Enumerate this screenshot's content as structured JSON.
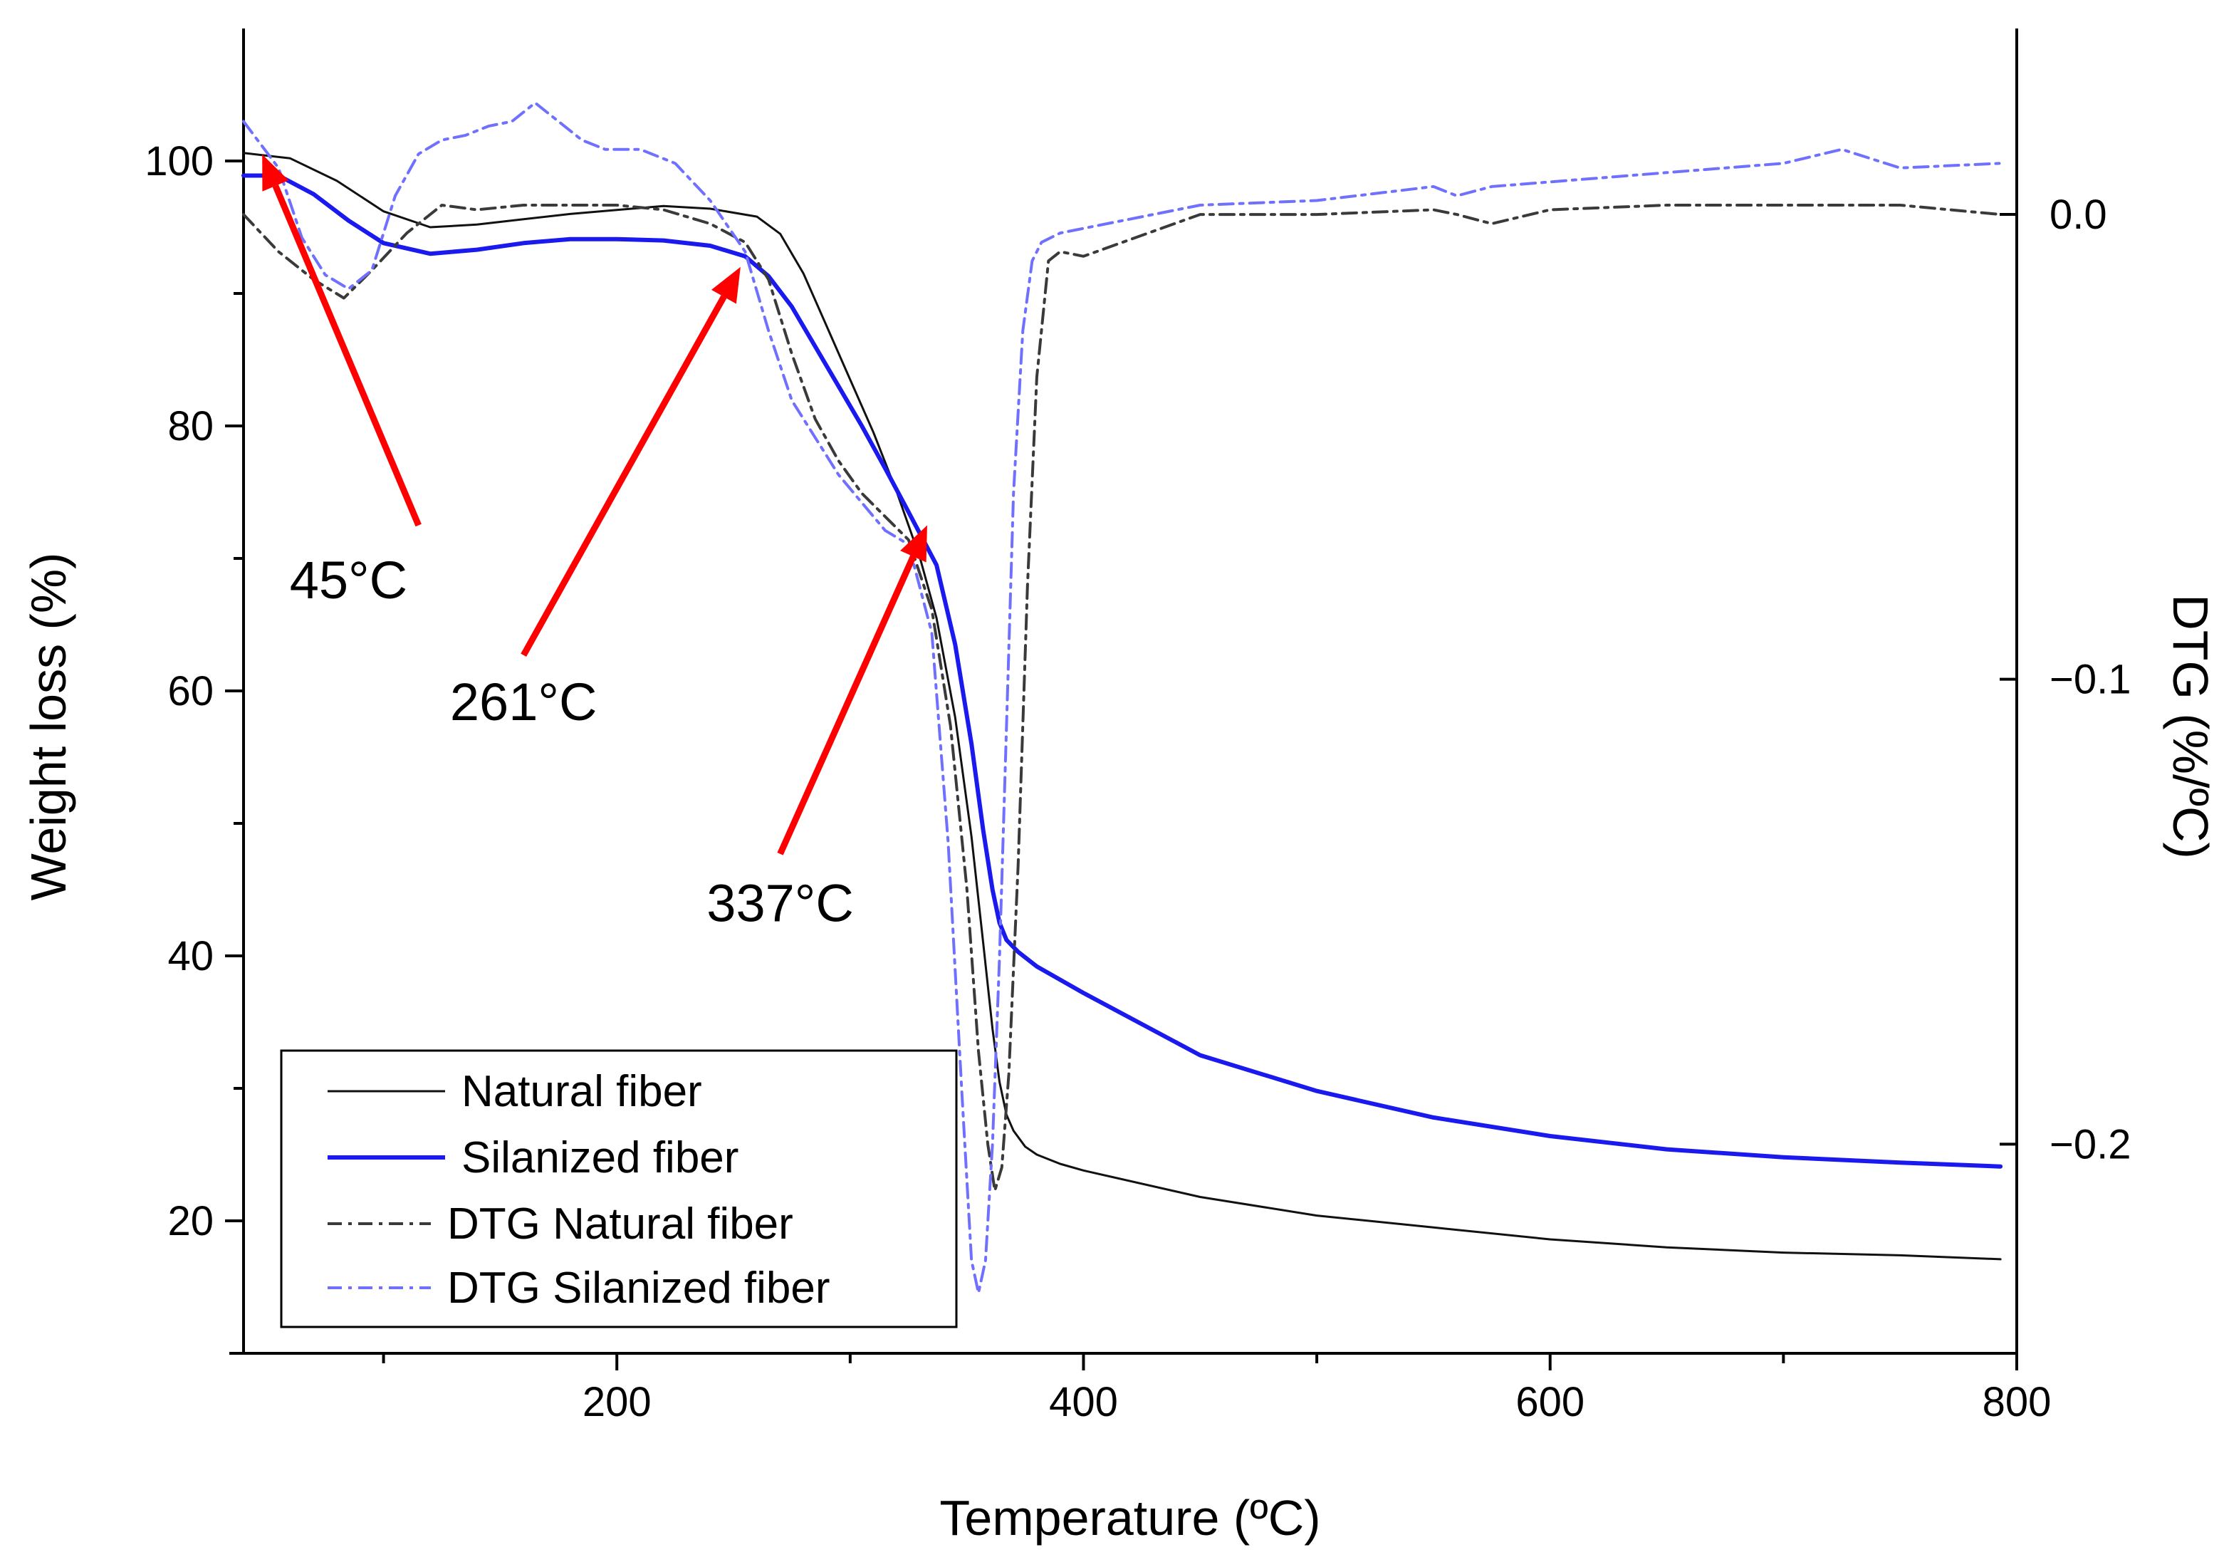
{
  "chart_data": {
    "type": "line",
    "title": "",
    "xlabel": "Temperature (ºC)",
    "ylabel": "Weight loss (%)",
    "y2label": "DTG (%/ºC)",
    "xlim": [
      40,
      800
    ],
    "ylim": [
      10,
      110
    ],
    "y2lim": [
      -0.245,
      0.04
    ],
    "x_ticks": [
      200,
      400,
      600,
      800
    ],
    "x_minor_ticks": [
      100,
      300,
      500,
      700
    ],
    "y_ticks": [
      20,
      40,
      60,
      80,
      100
    ],
    "y_minor_ticks": [
      30,
      50,
      70,
      90
    ],
    "y2_ticks": [
      0.0,
      -0.1,
      -0.2
    ],
    "y2_tick_labels": [
      "0.0",
      "−0.1",
      "−0.2"
    ],
    "legend_position": "bottom-left",
    "series": [
      {
        "name": "Natural fiber",
        "axis": "left",
        "color": "#111111",
        "style": "solid",
        "x": [
          40,
          60,
          80,
          100,
          120,
          140,
          160,
          180,
          200,
          220,
          240,
          260,
          270,
          280,
          290,
          300,
          310,
          320,
          330,
          337,
          345,
          352,
          357,
          361,
          364,
          367,
          370,
          375,
          380,
          390,
          400,
          450,
          500,
          550,
          600,
          650,
          700,
          750,
          793
        ],
        "y": [
          100.6,
          100.2,
          98.5,
          96.2,
          95.0,
          95.2,
          95.6,
          96.0,
          96.3,
          96.6,
          96.4,
          95.8,
          94.5,
          91.5,
          87.5,
          83.5,
          79.5,
          75.0,
          70.0,
          65.5,
          58.0,
          49.0,
          41.0,
          34.5,
          30.5,
          28.0,
          26.8,
          25.6,
          25.0,
          24.3,
          23.8,
          21.8,
          20.4,
          19.5,
          18.6,
          18.0,
          17.6,
          17.4,
          17.1
        ]
      },
      {
        "name": "Silanized fiber",
        "axis": "left",
        "color": "#1a1aee",
        "style": "solid",
        "x": [
          40,
          55,
          70,
          85,
          100,
          120,
          140,
          160,
          180,
          200,
          220,
          240,
          255,
          265,
          275,
          285,
          295,
          305,
          315,
          325,
          337,
          345,
          352,
          357,
          361,
          364,
          367,
          372,
          380,
          400,
          450,
          500,
          550,
          600,
          650,
          700,
          750,
          793
        ],
        "y": [
          98.9,
          98.9,
          97.5,
          95.5,
          93.8,
          93.0,
          93.3,
          93.8,
          94.1,
          94.1,
          94.0,
          93.6,
          92.8,
          91.3,
          89.0,
          86.0,
          83.0,
          80.0,
          76.8,
          73.5,
          69.5,
          63.5,
          56.0,
          49.5,
          45.0,
          42.5,
          41.2,
          40.3,
          39.2,
          37.2,
          32.5,
          29.8,
          27.8,
          26.4,
          25.4,
          24.8,
          24.4,
          24.1
        ]
      },
      {
        "name": "DTG Natural fiber",
        "axis": "right",
        "color": "#3a3a3a",
        "style": "dashdot",
        "x": [
          40,
          55,
          70,
          83,
          95,
          110,
          125,
          140,
          160,
          180,
          200,
          220,
          240,
          255,
          265,
          275,
          285,
          295,
          305,
          315,
          325,
          335,
          343,
          350,
          355,
          359,
          362,
          365,
          368,
          372,
          376,
          380,
          385,
          390,
          400,
          450,
          500,
          550,
          560,
          575,
          600,
          650,
          700,
          750,
          793
        ],
        "y": [
          0.0,
          -0.008,
          -0.014,
          -0.018,
          -0.012,
          -0.004,
          0.002,
          0.001,
          0.002,
          0.002,
          0.002,
          0.001,
          -0.002,
          -0.006,
          -0.014,
          -0.03,
          -0.044,
          -0.053,
          -0.06,
          -0.065,
          -0.07,
          -0.085,
          -0.11,
          -0.145,
          -0.18,
          -0.2,
          -0.21,
          -0.205,
          -0.185,
          -0.14,
          -0.08,
          -0.035,
          -0.01,
          -0.008,
          -0.009,
          0.0,
          0.0,
          0.001,
          0.0,
          -0.002,
          0.001,
          0.002,
          0.002,
          0.002,
          0.0
        ]
      },
      {
        "name": "DTG Silanized fiber",
        "axis": "right",
        "color": "#7070ff",
        "style": "dashdot",
        "x": [
          40,
          55,
          65,
          75,
          85,
          95,
          105,
          115,
          125,
          135,
          145,
          155,
          165,
          175,
          185,
          195,
          210,
          225,
          240,
          255,
          265,
          275,
          285,
          295,
          305,
          315,
          325,
          335,
          342,
          348,
          352,
          355,
          358,
          361,
          364,
          367,
          370,
          374,
          378,
          382,
          386,
          390,
          400,
          450,
          500,
          550,
          560,
          575,
          600,
          650,
          700,
          725,
          750,
          793
        ],
        "y": [
          0.02,
          0.01,
          -0.005,
          -0.013,
          -0.016,
          -0.012,
          0.004,
          0.013,
          0.016,
          0.017,
          0.019,
          0.02,
          0.024,
          0.02,
          0.016,
          0.014,
          0.014,
          0.011,
          0.003,
          -0.008,
          -0.025,
          -0.04,
          -0.048,
          -0.056,
          -0.062,
          -0.068,
          -0.071,
          -0.09,
          -0.135,
          -0.19,
          -0.225,
          -0.232,
          -0.225,
          -0.2,
          -0.16,
          -0.11,
          -0.06,
          -0.025,
          -0.01,
          -0.006,
          -0.005,
          -0.004,
          -0.003,
          0.002,
          0.003,
          0.006,
          0.004,
          0.006,
          0.007,
          0.009,
          0.011,
          0.014,
          0.01,
          0.011
        ]
      }
    ],
    "annotations": [
      {
        "label": "45°C",
        "text_x": 85,
        "text_y": 67.0,
        "tail_x": 115,
        "tail_y": 72.5,
        "head_x": 48,
        "head_y": 100.5
      },
      {
        "label": "261°C",
        "text_x": 160,
        "text_y": 57.8,
        "tail_x": 160,
        "tail_y": 62.7,
        "head_x": 253,
        "head_y": 92.0
      },
      {
        "label": "337°C",
        "text_x": 270,
        "text_y": 42.6,
        "tail_x": 270,
        "tail_y": 47.7,
        "head_x": 333,
        "head_y": 72.5
      }
    ],
    "annotation_color": "#ff0000"
  }
}
